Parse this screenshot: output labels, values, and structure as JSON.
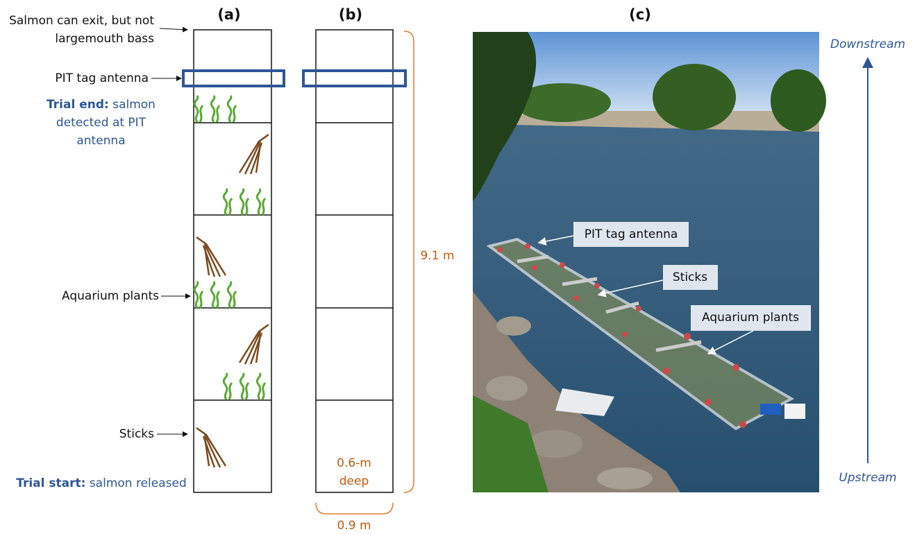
{
  "panel_a": {
    "label": "(a)",
    "exit_note": [
      "Salmon can exit, but not",
      "largemouth bass"
    ],
    "antenna": "PIT tag antenna",
    "trial_end": {
      "label": "Trial end:",
      "text": "salmon detected at PIT antenna"
    },
    "plants": "Aquarium plants",
    "sticks": "Sticks",
    "trial_start": {
      "label": "Trial start:",
      "text": "salmon released"
    }
  },
  "panel_b": {
    "label": "(b)",
    "length": "9.1 m",
    "depth": [
      "0.6-m",
      "deep"
    ],
    "width": "0.9 m"
  },
  "panel_c": {
    "label": "(c)",
    "callouts": [
      "PIT tag antenna",
      "Sticks",
      "Aquarium plants"
    ],
    "downstream": "Downstream",
    "upstream": "Upstream"
  }
}
